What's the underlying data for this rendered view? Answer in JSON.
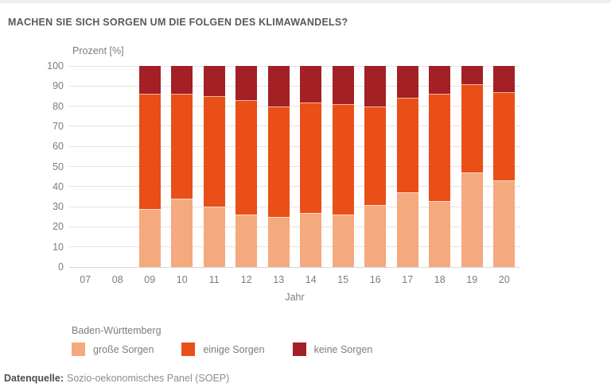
{
  "page": {
    "title": "MACHEN SIE SICH SORGEN UM DIE FOLGEN DES KLIMAWANDELS?",
    "source_label": "Datenquelle:",
    "source_text": "Sozio-oekonomisches Panel (SOEP)"
  },
  "colors": {
    "title_text": "#595959",
    "axis_text": "#7d7d7d",
    "gridline": "#e4e4e4",
    "top_strip": "#efefef",
    "grosse_sorgen": "#F5A97E",
    "einige_sorgen": "#E94F17",
    "keine_sorgen": "#A32025"
  },
  "chart_data": {
    "type": "bar",
    "stacked": true,
    "title": "MACHEN SIE SICH SORGEN UM DIE FOLGEN DES KLIMAWANDELS?",
    "ylabel": "Prozent [%]",
    "xlabel": "Jahr",
    "ylim": [
      0,
      100
    ],
    "yticks": [
      0,
      10,
      20,
      30,
      40,
      50,
      60,
      70,
      80,
      90,
      100
    ],
    "grid": true,
    "legend_title": "Baden-Württemberg",
    "legend_position": "bottom",
    "categories": [
      "07",
      "08",
      "09",
      "10",
      "11",
      "12",
      "13",
      "14",
      "15",
      "16",
      "17",
      "18",
      "19",
      "20"
    ],
    "series": [
      {
        "name": "große Sorgen",
        "color": "#F5A97E",
        "values": [
          null,
          null,
          29,
          34,
          30,
          26,
          25,
          27,
          26,
          31,
          37,
          33,
          47,
          43
        ]
      },
      {
        "name": "einige Sorgen",
        "color": "#E94F17",
        "values": [
          null,
          null,
          57,
          52,
          55,
          57,
          55,
          55,
          55,
          49,
          47,
          53,
          44,
          44
        ]
      },
      {
        "name": "keine Sorgen",
        "color": "#A32025",
        "values": [
          null,
          null,
          14,
          14,
          15,
          17,
          20,
          18,
          19,
          20,
          16,
          14,
          9,
          13
        ]
      }
    ]
  }
}
